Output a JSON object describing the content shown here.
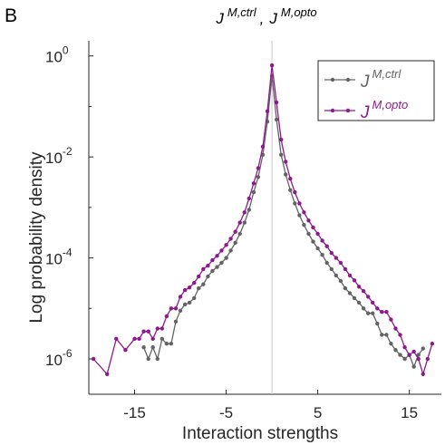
{
  "panel_label": "B",
  "chart_data": {
    "type": "line",
    "title": {
      "base1": "J",
      "sup1": "M,ctrl",
      "sep": ",",
      "base2": "J",
      "sup2": "M,opto"
    },
    "xlabel": "Interaction strengths",
    "ylabel": "Log probability density",
    "xlim": [
      -20,
      18.5
    ],
    "ylog": true,
    "ylim_exp": [
      -6.7,
      0.3
    ],
    "xticks": [
      -15,
      -5,
      5,
      15
    ],
    "xtick_labels": [
      "-15",
      "-5",
      "5",
      "15"
    ],
    "yticks_exp": [
      0,
      -2,
      -4,
      -6
    ],
    "ytick_labels": [
      {
        "base": "10",
        "exp": "0"
      },
      {
        "base": "10",
        "exp": "-2"
      },
      {
        "base": "10",
        "exp": "-4"
      },
      {
        "base": "10",
        "exp": "-6"
      }
    ],
    "center_line_x": 0,
    "legend_position": "top-right",
    "series": [
      {
        "name_base": "J",
        "name_sup": "M,ctrl",
        "color": "#636363",
        "x": [
          -14.0,
          -13.5,
          -13.0,
          -12.5,
          -12.0,
          -11.5,
          -11.0,
          -10.5,
          -10.0,
          -9.5,
          -9.0,
          -8.5,
          -8.0,
          -7.5,
          -7.0,
          -6.5,
          -6.0,
          -5.5,
          -5.0,
          -4.5,
          -4.0,
          -3.5,
          -3.0,
          -2.5,
          -2.0,
          -1.5,
          -1.0,
          -0.5,
          0.0,
          0.5,
          1.0,
          1.5,
          2.0,
          2.5,
          3.0,
          3.5,
          4.0,
          4.5,
          5.0,
          5.5,
          6.0,
          6.5,
          7.0,
          7.5,
          8.0,
          8.5,
          9.0,
          9.5,
          10.0,
          10.5,
          11.0,
          11.5,
          12.0,
          12.5,
          13.0,
          13.5,
          14.0,
          14.5,
          15.0,
          15.5,
          16.0,
          16.5
        ],
        "y": [
          1.7e-06,
          1e-06,
          1.7e-06,
          1e-06,
          2.5e-06,
          2e-06,
          2e-06,
          5.5e-06,
          9e-06,
          1.2e-05,
          1.3e-05,
          1.6e-05,
          2.5e-05,
          3e-05,
          4.3e-05,
          5.5e-05,
          6.6e-05,
          8e-05,
          0.0001,
          0.00014,
          0.0002,
          0.0003,
          0.0005,
          0.0009,
          0.002,
          0.004,
          0.011,
          0.05,
          0.4,
          0.055,
          0.011,
          0.0045,
          0.0022,
          0.0012,
          0.0007,
          0.00045,
          0.0003,
          0.00021,
          0.000155,
          0.000115,
          8e-05,
          6e-05,
          4.5e-05,
          3.5e-05,
          2.5e-05,
          2e-05,
          1.6e-05,
          1.3e-05,
          1e-05,
          8e-06,
          8e-06,
          5e-06,
          3e-06,
          3e-06,
          2e-06,
          1.5e-06,
          1.2e-06,
          1e-06,
          1.2e-06,
          7e-07,
          1.2e-06,
          1.6e-06
        ]
      },
      {
        "name_base": "J",
        "name_sup": "M,opto",
        "color": "#8c1a8c",
        "x": [
          -19.5,
          -18.0,
          -17.0,
          -16.0,
          -15.0,
          -14.5,
          -14.0,
          -13.5,
          -13.0,
          -12.5,
          -12.0,
          -11.5,
          -11.0,
          -10.5,
          -10.0,
          -9.5,
          -9.0,
          -8.5,
          -8.0,
          -7.5,
          -7.0,
          -6.5,
          -6.0,
          -5.5,
          -5.0,
          -4.5,
          -4.0,
          -3.5,
          -3.0,
          -2.5,
          -2.0,
          -1.5,
          -1.0,
          -0.5,
          0.0,
          0.5,
          1.0,
          1.5,
          2.0,
          2.5,
          3.0,
          3.5,
          4.0,
          4.5,
          5.0,
          5.5,
          6.0,
          6.5,
          7.0,
          7.5,
          8.0,
          8.5,
          9.0,
          9.5,
          10.0,
          10.5,
          11.0,
          11.5,
          12.0,
          12.5,
          13.0,
          13.5,
          14.0,
          14.5,
          15.0,
          15.5,
          16.0,
          16.5,
          17.0,
          17.5
        ],
        "y": [
          1e-06,
          5e-07,
          2.5e-06,
          1.5e-06,
          2.5e-06,
          2.5e-06,
          3.5e-06,
          3.5e-06,
          2.5e-06,
          4e-06,
          4e-06,
          7e-06,
          1e-05,
          1e-05,
          1.7e-05,
          2.3e-05,
          2.6e-05,
          3.2e-05,
          4.3e-05,
          6e-05,
          7e-05,
          9e-05,
          0.00011,
          0.00014,
          0.00018,
          0.00024,
          0.00033,
          0.0005,
          0.0008,
          0.0015,
          0.003,
          0.006,
          0.016,
          0.08,
          0.65,
          0.12,
          0.022,
          0.008,
          0.0037,
          0.002,
          0.0012,
          0.0008,
          0.00055,
          0.0004,
          0.0003,
          0.00022,
          0.00017,
          0.000125,
          0.0001,
          8e-05,
          6e-05,
          4.5e-05,
          3.6e-05,
          2.7e-05,
          2.2e-05,
          1.7e-05,
          1.3e-05,
          1e-05,
          8.5e-06,
          8.5e-06,
          6e-06,
          4e-06,
          3e-06,
          1.7e-06,
          1.2e-06,
          1.4e-06,
          1e-06,
          5e-07,
          1e-06,
          2e-06
        ]
      }
    ]
  }
}
